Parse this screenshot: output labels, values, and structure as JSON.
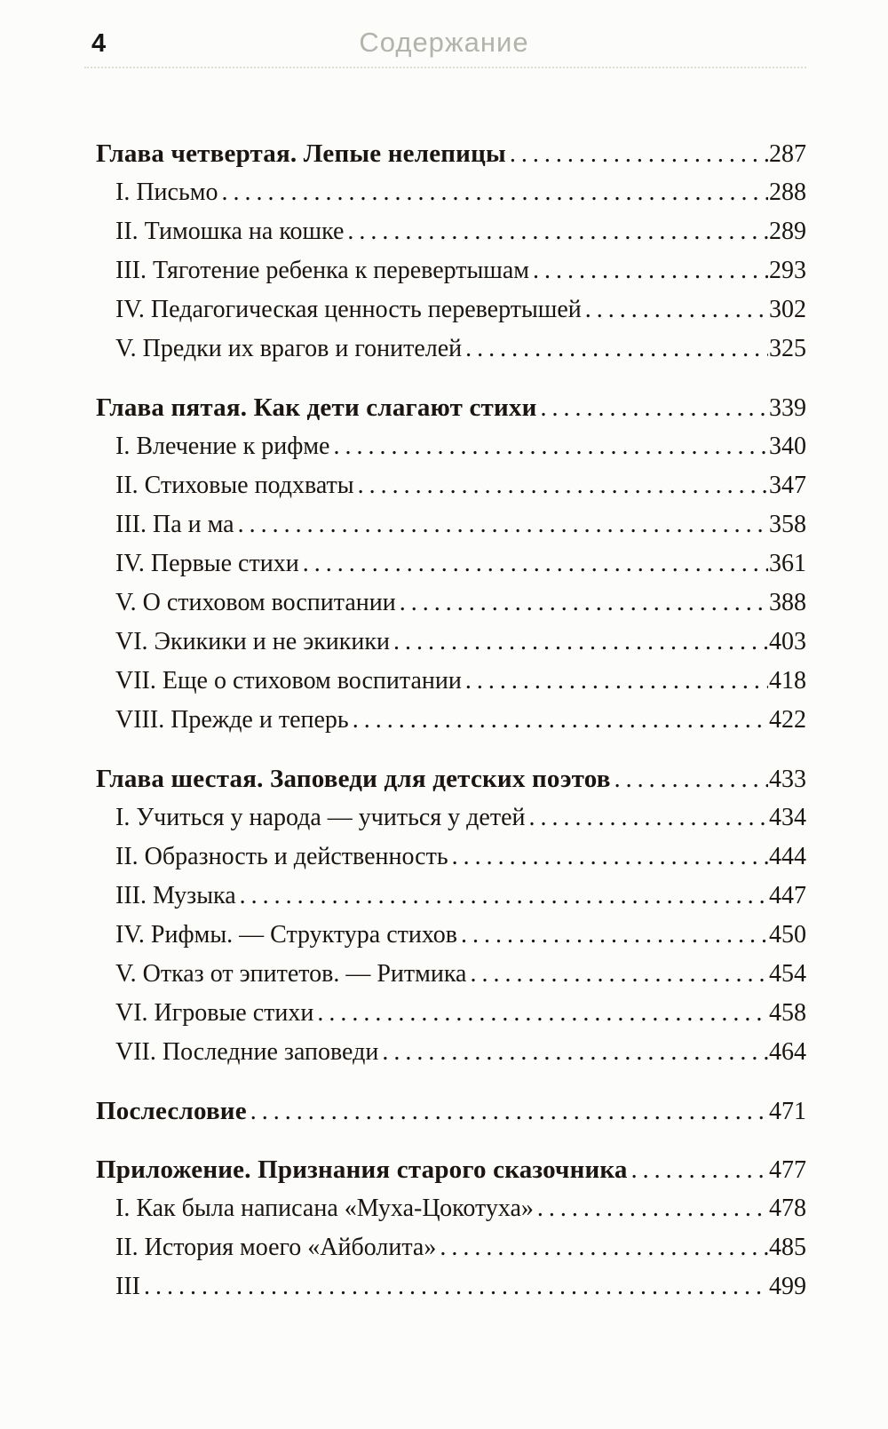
{
  "header": {
    "page_number": "4",
    "title": "Содержание"
  },
  "colors": {
    "text": "#1b1511",
    "muted_header": "#b3b3ac",
    "rule": "#d9d6c8",
    "background": "#fcfcfa"
  },
  "toc": {
    "sections": [
      {
        "heading": {
          "label": "Глава четвертая. Лепые нелепицы",
          "page": "287"
        },
        "items": [
          {
            "label": "I. Письмо",
            "page": "288"
          },
          {
            "label": "II. Тимошка на кошке",
            "page": "289"
          },
          {
            "label": "III. Тяготение ребенка к перевертышам",
            "page": "293"
          },
          {
            "label": "IV. Педагогическая ценность перевертышей",
            "page": "302"
          },
          {
            "label": "V. Предки их врагов и гонителей",
            "page": "325"
          }
        ]
      },
      {
        "heading": {
          "label": "Глава пятая. Как дети слагают стихи",
          "page": "339"
        },
        "items": [
          {
            "label": "I. Влечение к рифме",
            "page": "340"
          },
          {
            "label": "II. Стиховые подхваты",
            "page": "347"
          },
          {
            "label": "III. Па и ма",
            "page": "358"
          },
          {
            "label": "IV. Первые стихи",
            "page": "361"
          },
          {
            "label": "V. О стиховом воспитании",
            "page": "388"
          },
          {
            "label": "VI. Экикики и не экикики",
            "page": "403"
          },
          {
            "label": "VII. Еще о стиховом воспитании",
            "page": "418"
          },
          {
            "label": "VIII. Прежде и теперь",
            "page": "422"
          }
        ]
      },
      {
        "heading": {
          "label": "Глава шестая. Заповеди для детских поэтов",
          "page": "433"
        },
        "items": [
          {
            "label": "I. Учиться у народа — учиться у детей",
            "page": "434"
          },
          {
            "label": "II. Образность и действенность",
            "page": "444"
          },
          {
            "label": "III. Музыка",
            "page": "447"
          },
          {
            "label": "IV. Рифмы. — Структура стихов",
            "page": "450"
          },
          {
            "label": "V. Отказ от эпитетов. — Ритмика",
            "page": "454"
          },
          {
            "label": "VI. Игровые стихи",
            "page": "458"
          },
          {
            "label": "VII. Последние заповеди",
            "page": "464"
          }
        ]
      },
      {
        "heading": {
          "label": "Послесловие",
          "page": "471"
        },
        "items": []
      },
      {
        "heading": {
          "label": "Приложение. Признания старого сказочника",
          "page": "477"
        },
        "items": [
          {
            "label": "I. Как была написана «Муха-Цокотуха»",
            "page": "478"
          },
          {
            "label": "II. История моего «Айболита»",
            "page": "485"
          },
          {
            "label": "III",
            "page": "499"
          }
        ]
      }
    ]
  }
}
